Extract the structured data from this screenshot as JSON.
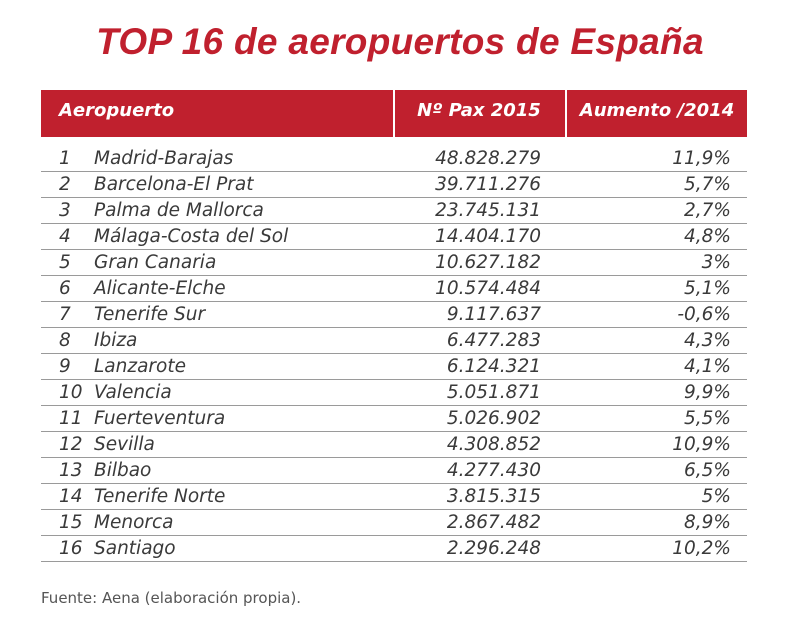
{
  "title": "TOP 16 de aeropuertos de España",
  "source": "Fuente: Aena (elaboración propia).",
  "colors": {
    "accent": "#c0202e",
    "text": "#3a3a3a",
    "rule": "#9a9a9a"
  },
  "chart_data": {
    "type": "table",
    "title": "TOP 16 de aeropuertos de España",
    "columns": [
      "Aeropuerto",
      "Nº Pax 2015",
      "Aumento /2014"
    ],
    "rows": [
      {
        "rank": "1",
        "airport": "Madrid-Barajas",
        "pax": "48.828.279",
        "growth": "11,9%"
      },
      {
        "rank": "2",
        "airport": "Barcelona-El Prat",
        "pax": "39.711.276",
        "growth": "5,7%"
      },
      {
        "rank": "3",
        "airport": "Palma de Mallorca",
        "pax": "23.745.131",
        "growth": "2,7%"
      },
      {
        "rank": "4",
        "airport": "Málaga-Costa del Sol",
        "pax": "14.404.170",
        "growth": "4,8%"
      },
      {
        "rank": "5",
        "airport": "Gran Canaria",
        "pax": "10.627.182",
        "growth": "3%"
      },
      {
        "rank": "6",
        "airport": "Alicante-Elche",
        "pax": "10.574.484",
        "growth": "5,1%"
      },
      {
        "rank": "7",
        "airport": "Tenerife Sur",
        "pax": "9.117.637",
        "growth": "-0,6%"
      },
      {
        "rank": "8",
        "airport": "Ibiza",
        "pax": "6.477.283",
        "growth": "4,3%"
      },
      {
        "rank": "9",
        "airport": "Lanzarote",
        "pax": "6.124.321",
        "growth": "4,1%"
      },
      {
        "rank": "10",
        "airport": "Valencia",
        "pax": "5.051.871",
        "growth": "9,9%"
      },
      {
        "rank": "11",
        "airport": "Fuerteventura",
        "pax": "5.026.902",
        "growth": "5,5%"
      },
      {
        "rank": "12",
        "airport": "Sevilla",
        "pax": "4.308.852",
        "growth": "10,9%"
      },
      {
        "rank": "13",
        "airport": "Bilbao",
        "pax": "4.277.430",
        "growth": "6,5%"
      },
      {
        "rank": "14",
        "airport": "Tenerife Norte",
        "pax": "3.815.315",
        "growth": "5%"
      },
      {
        "rank": "15",
        "airport": "Menorca",
        "pax": "2.867.482",
        "growth": "8,9%"
      },
      {
        "rank": "16",
        "airport": "Santiago",
        "pax": "2.296.248",
        "growth": "10,2%"
      }
    ]
  }
}
